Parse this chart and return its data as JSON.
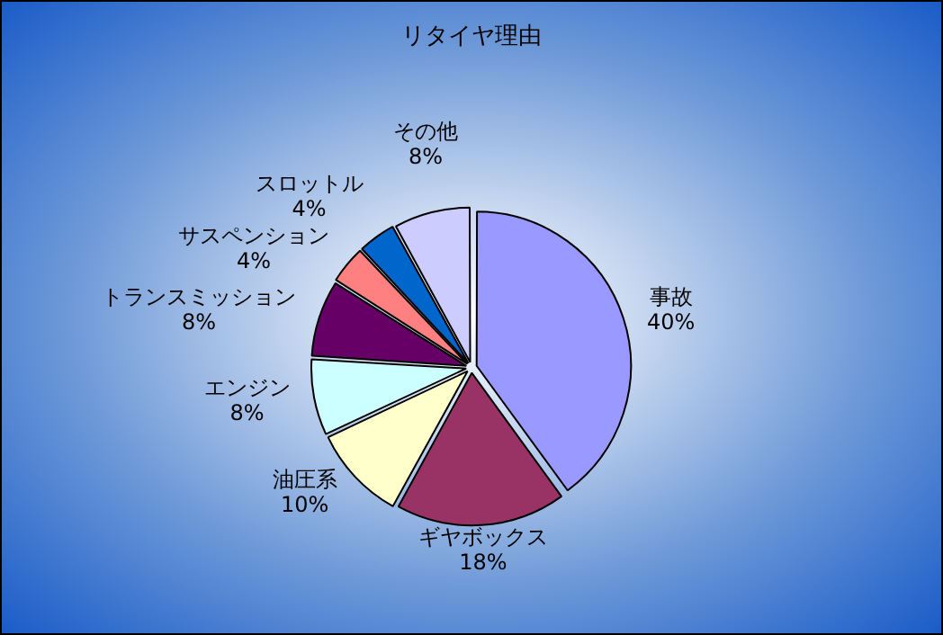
{
  "chart_data": {
    "type": "pie",
    "title": "リタイヤ理由",
    "categories": [
      "事故",
      "ギヤボックス",
      "油圧系",
      "エンジン",
      "トランスミッション",
      "サスペンション",
      "スロットル",
      "その他"
    ],
    "values": [
      40,
      18,
      10,
      8,
      8,
      4,
      4,
      8
    ],
    "value_labels": [
      "40%",
      "18%",
      "10%",
      "8%",
      "8%",
      "4%",
      "4%",
      "8%"
    ],
    "colors": [
      "#9999ff",
      "#993366",
      "#ffffcc",
      "#ccffff",
      "#660066",
      "#ff8080",
      "#0066cc",
      "#ccccff"
    ],
    "legend": false
  }
}
